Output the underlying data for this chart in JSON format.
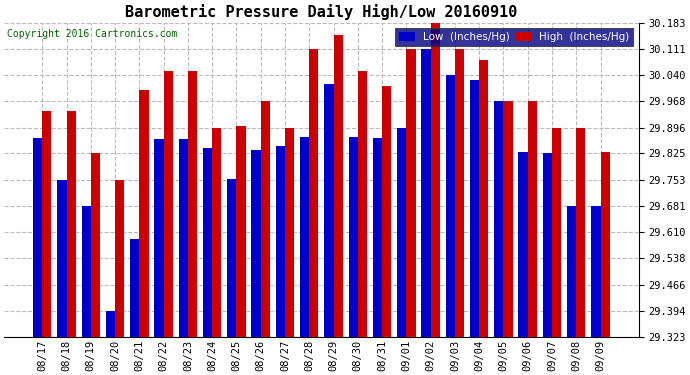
{
  "title": "Barometric Pressure Daily High/Low 20160910",
  "copyright": "Copyright 2016 Cartronics.com",
  "low_color": "#0000cc",
  "high_color": "#cc0000",
  "ymin": 29.323,
  "ymax": 30.183,
  "yticks": [
    29.323,
    29.394,
    29.466,
    29.538,
    29.61,
    29.681,
    29.753,
    29.825,
    29.896,
    29.968,
    30.04,
    30.111,
    30.183
  ],
  "dates": [
    "08/17",
    "08/18",
    "08/19",
    "08/20",
    "08/21",
    "08/22",
    "08/23",
    "08/24",
    "08/25",
    "08/26",
    "08/27",
    "08/28",
    "08/29",
    "08/30",
    "08/31",
    "09/01",
    "09/02",
    "09/03",
    "09/04",
    "09/05",
    "09/06",
    "09/07",
    "09/08",
    "09/09"
  ],
  "high_values": [
    29.94,
    29.94,
    29.825,
    29.753,
    30.0,
    30.05,
    30.05,
    29.896,
    29.9,
    29.968,
    29.896,
    30.111,
    30.15,
    30.05,
    30.01,
    30.111,
    30.183,
    30.111,
    30.08,
    29.968,
    29.968,
    29.896,
    29.896,
    29.83
  ],
  "low_values": [
    29.868,
    29.753,
    29.681,
    29.394,
    29.59,
    29.865,
    29.865,
    29.84,
    29.755,
    29.835,
    29.845,
    29.87,
    30.015,
    29.87,
    29.868,
    29.896,
    30.111,
    30.04,
    30.025,
    29.968,
    29.83,
    29.825,
    29.681,
    29.681
  ],
  "background_color": "#ffffff",
  "grid_color": "#bbbbbb",
  "bar_width": 0.38
}
